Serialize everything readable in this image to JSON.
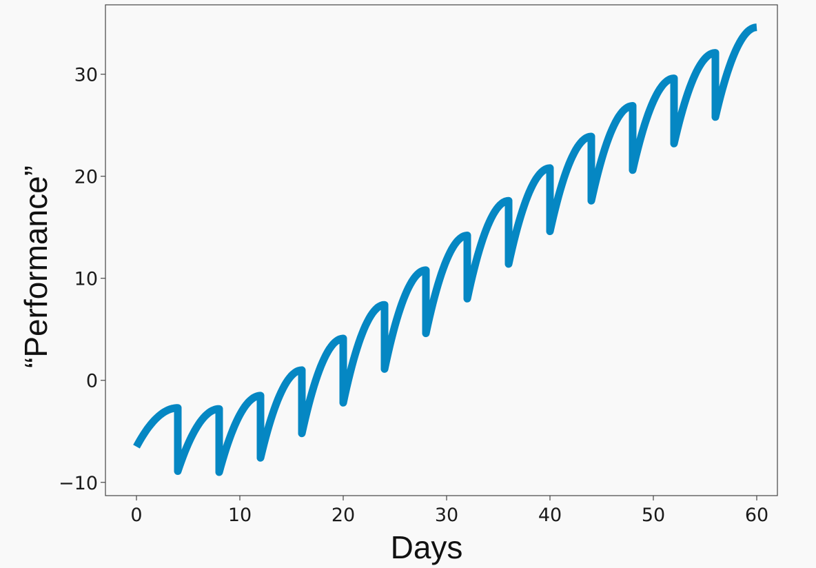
{
  "chart_data": {
    "type": "line",
    "title": "",
    "xlabel": "Days",
    "ylabel": "“Performance”",
    "xlim": [
      -3,
      62
    ],
    "ylim": [
      -11.3,
      36.8
    ],
    "xticks": [
      0,
      10,
      20,
      30,
      40,
      50,
      60
    ],
    "yticks": [
      -10,
      0,
      10,
      20,
      30
    ],
    "xtick_labels": [
      "0",
      "10",
      "20",
      "30",
      "40",
      "50",
      "60"
    ],
    "ytick_labels": [
      "−10",
      "0",
      "10",
      "20",
      "30"
    ],
    "grid": false,
    "legend": "none",
    "line_color": "#0587c3",
    "series": [
      {
        "x": [
          0,
          4,
          4,
          8,
          8,
          12,
          12,
          16,
          16,
          20,
          20,
          24,
          24,
          28,
          28,
          32,
          32,
          36,
          36,
          40,
          40,
          44,
          44,
          48,
          48,
          52,
          52,
          56,
          56,
          60
        ],
        "y": [
          -6.5,
          -2.7,
          -8.9,
          -2.8,
          -9.0,
          -1.5,
          -7.6,
          1.0,
          -5.2,
          4.1,
          -2.2,
          7.4,
          1.1,
          10.8,
          4.6,
          14.2,
          8.0,
          17.6,
          11.4,
          20.8,
          14.6,
          23.9,
          17.6,
          26.9,
          20.6,
          29.6,
          23.2,
          32.1,
          25.8,
          34.6
        ]
      }
    ]
  }
}
